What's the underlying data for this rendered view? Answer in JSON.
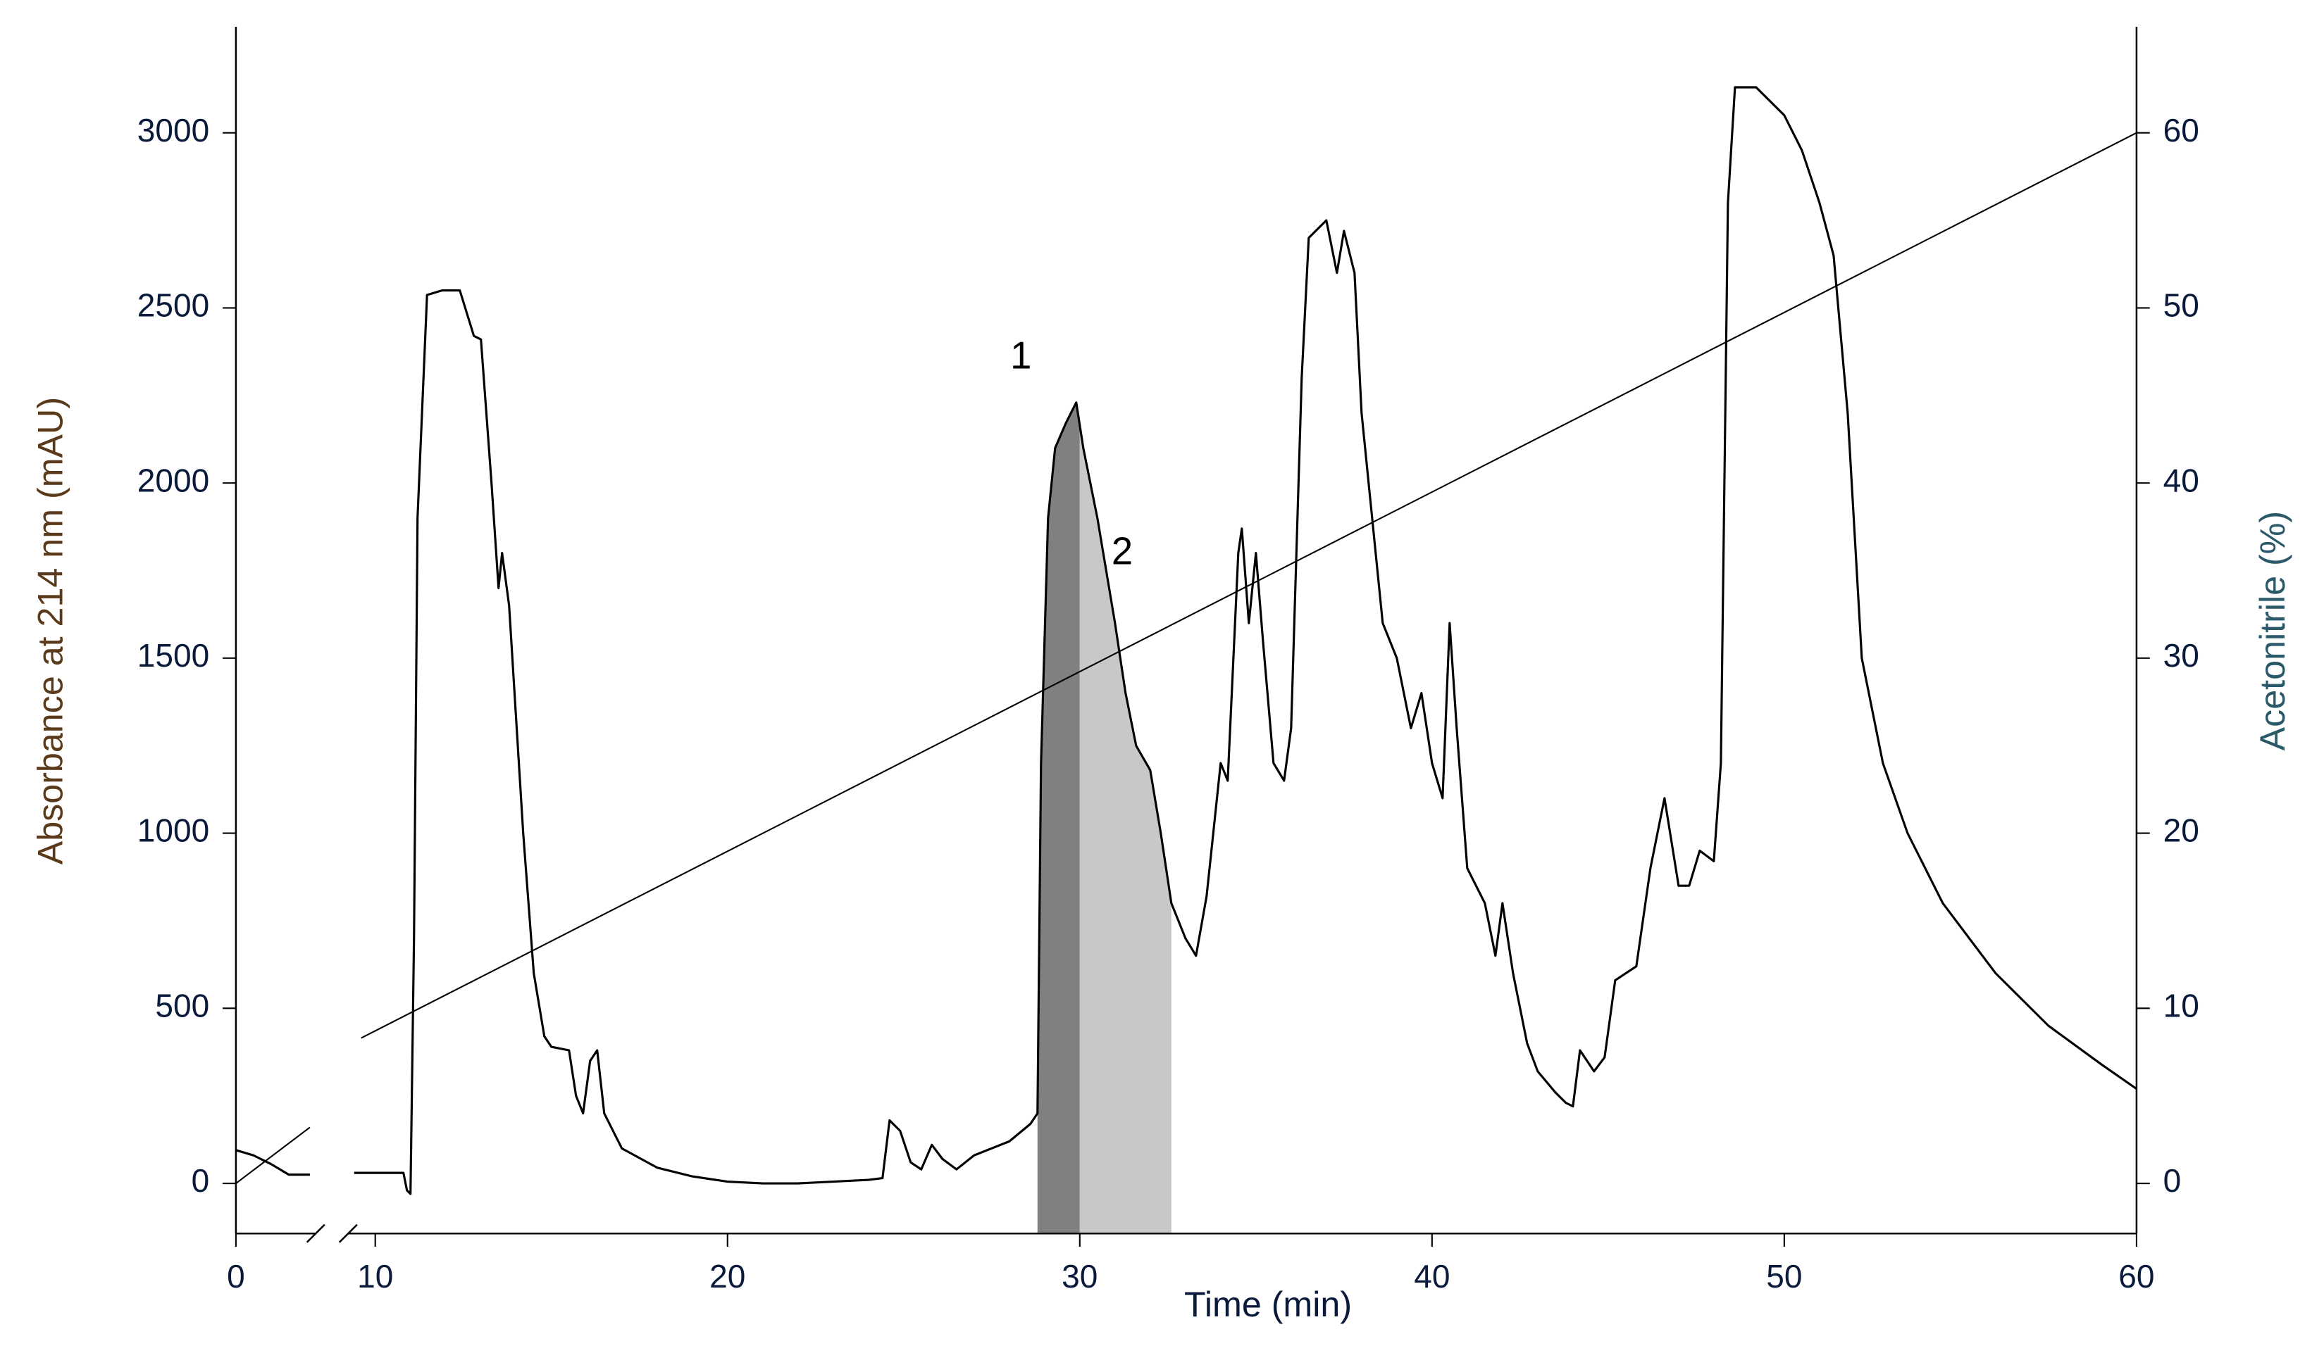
{
  "chart_data": {
    "type": "line",
    "x_label": "Time (min)",
    "y_label": "Absorbance at 214 nm (mAU)",
    "y2_label": "Acetonitrile (%)",
    "xlim": [
      0,
      60
    ],
    "xticks": [
      0,
      10,
      20,
      30,
      40,
      50,
      60
    ],
    "x_break": [
      2.1,
      9.4
    ],
    "ylim": [
      -143,
      3303
    ],
    "yticks": [
      0,
      500,
      1000,
      1500,
      2000,
      2500,
      3000
    ],
    "y2lim": [
      -2.86,
      66.06
    ],
    "y2ticks": [
      0,
      10,
      20,
      30,
      40,
      50,
      60
    ],
    "series": [
      {
        "color": "#000000",
        "x": [
          0,
          0.5,
          1,
          1.5,
          2.1,
          9.4,
          10,
          10.8,
          10.9,
          11.0,
          11.1,
          11.2,
          11.47,
          11.9,
          12.4,
          12.8,
          13,
          13.3,
          13.5,
          13.6,
          13.8,
          14.2,
          14.5,
          14.8,
          15.0,
          15.5,
          15.7,
          15.9,
          16.1,
          16.3,
          16.5,
          17,
          18,
          19,
          20,
          21,
          22,
          23,
          24,
          24.4,
          24.6,
          24.9,
          25.2,
          25.5,
          25.8,
          26.1,
          26.5,
          27,
          28,
          28.6,
          28.8,
          28.9,
          29.1,
          29.3,
          29.6,
          29.9,
          30.1,
          30.5,
          31,
          31.3,
          31.6,
          32,
          32.3,
          32.6,
          33,
          33.3,
          33.6,
          34,
          34.2,
          34.5,
          34.6,
          34.8,
          35,
          35.2,
          35.5,
          35.8,
          36,
          36.3,
          36.5,
          37,
          37.3,
          37.5,
          37.8,
          38,
          38.3,
          38.6,
          39,
          39.4,
          39.7,
          40,
          40.3,
          40.5,
          40.7,
          41,
          41.5,
          41.8,
          42,
          42.3,
          42.7,
          43,
          43.5,
          43.8,
          44,
          44.2,
          44.6,
          44.9,
          45.2,
          45.8,
          46.2,
          46.6,
          47,
          47.3,
          47.6,
          48,
          48.2,
          48.4,
          48.6,
          49.2,
          50,
          50.5,
          51,
          51.4,
          51.8,
          52.2,
          52.8,
          53.5,
          54.5,
          56,
          57.5,
          59,
          60
        ],
        "values": [
          95,
          80,
          55,
          25,
          25,
          30,
          30,
          30,
          -20,
          -30,
          700,
          1900,
          2537,
          2550,
          2550,
          2420,
          2410,
          2000,
          1700,
          1800,
          1650,
          1000,
          600,
          420,
          390,
          380,
          250,
          200,
          350,
          380,
          200,
          100,
          45,
          20,
          5,
          0,
          0,
          5,
          10,
          15,
          180,
          150,
          60,
          40,
          110,
          70,
          40,
          80,
          120,
          170,
          200,
          1200,
          1900,
          2100,
          2170,
          2230,
          2100,
          1900,
          1600,
          1400,
          1250,
          1180,
          1000,
          800,
          700,
          650,
          820,
          1200,
          1150,
          1800,
          1870,
          1600,
          1800,
          1550,
          1200,
          1150,
          1300,
          2300,
          2700,
          2750,
          2600,
          2720,
          2600,
          2200,
          1900,
          1600,
          1500,
          1300,
          1400,
          1200,
          1100,
          1600,
          1300,
          900,
          800,
          650,
          800,
          600,
          400,
          320,
          260,
          230,
          220,
          380,
          320,
          360,
          580,
          620,
          900,
          1100,
          850,
          850,
          950,
          920,
          1200,
          2800,
          3130,
          3130,
          3050,
          2950,
          2800,
          2650,
          2200,
          1500,
          1200,
          1000,
          800,
          600,
          450,
          340,
          270
        ]
      },
      {
        "color": "#000000",
        "axis": "y2",
        "x": [
          0,
          2.1,
          9.6,
          60
        ],
        "values": [
          0,
          3.2,
          8.3,
          60
        ]
      }
    ],
    "fractions": [
      {
        "label": "1",
        "x": [
          28.8,
          30
        ],
        "color": "#808080"
      },
      {
        "label": "2",
        "x": [
          30,
          32.6
        ],
        "color": "#c8c8c8"
      }
    ]
  }
}
